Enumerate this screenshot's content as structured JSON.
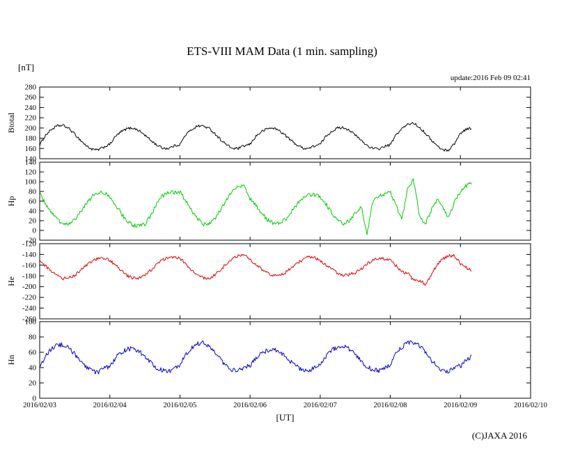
{
  "page": {
    "title": "ETS-VIII MAM Data (1 min. sampling)",
    "unit_label": "[nT]",
    "update_label": "update:2016 Feb 09 02:41",
    "xaxis_title": "[UT]",
    "copyright": "(C)JAXA 2016"
  },
  "chart_data": {
    "type": "line",
    "title": "ETS-VIII MAM Data (1 min. sampling)",
    "xlabel": "[UT]",
    "ylabel": "[nT]",
    "x_start": "2016/02/03",
    "x_end": "2016/02/10",
    "x_tick_labels": [
      "2016/02/03",
      "2016/02/04",
      "2016/02/05",
      "2016/02/06",
      "2016/02/07",
      "2016/02/08",
      "2016/02/09",
      "2016/02/10"
    ],
    "sample_interval_hours": 2,
    "grid": false,
    "legend": "none",
    "panels": [
      {
        "name": "Btotal",
        "color": "#000000",
        "ylim": [
          140,
          280
        ],
        "yticks": [
          280,
          260,
          240,
          220,
          200,
          180,
          160,
          140
        ],
        "noise": 2.5,
        "values": [
          167,
          186,
          197,
          204,
          205,
          199,
          188,
          176,
          165,
          158,
          157,
          163,
          168,
          184,
          193,
          199,
          200,
          195,
          186,
          176,
          167,
          161,
          160,
          165,
          168,
          187,
          197,
          204,
          204,
          199,
          189,
          177,
          167,
          160,
          160,
          165,
          168,
          184,
          193,
          199,
          200,
          195,
          186,
          176,
          167,
          161,
          160,
          165,
          168,
          184,
          194,
          200,
          201,
          196,
          186,
          176,
          166,
          160,
          159,
          164,
          167,
          187,
          199,
          207,
          210,
          201,
          190,
          177,
          165,
          157,
          157,
          170,
          190,
          198,
          200
        ]
      },
      {
        "name": "Hp",
        "color": "#00cc00",
        "ylim": [
          -20,
          140
        ],
        "yticks": [
          140,
          120,
          100,
          80,
          60,
          40,
          20,
          0,
          -20
        ],
        "noise": 4,
        "values": [
          76,
          54,
          36,
          22,
          14,
          14,
          23,
          38,
          56,
          70,
          78,
          78,
          68,
          52,
          34,
          18,
          10,
          10,
          12,
          30,
          54,
          70,
          78,
          78,
          79,
          61,
          40,
          23,
          13,
          14,
          25,
          43,
          64,
          81,
          91,
          90,
          65,
          51,
          35,
          22,
          15,
          15,
          23,
          37,
          53,
          66,
          73,
          73,
          69,
          54,
          36,
          22,
          14,
          20,
          35,
          50,
          -8,
          60,
          70,
          75,
          78,
          50,
          22,
          88,
          103,
          30,
          12,
          42,
          62,
          48,
          25,
          58,
          80,
          92,
          97
        ]
      },
      {
        "name": "He",
        "color": "#e00000",
        "ylim": [
          -260,
          -120
        ],
        "yticks": [
          -120,
          -140,
          -160,
          -180,
          -200,
          -220,
          -240,
          -260
        ],
        "noise": 3,
        "values": [
          -152,
          -162,
          -172,
          -180,
          -185,
          -184,
          -179,
          -170,
          -161,
          -152,
          -148,
          -148,
          -151,
          -160,
          -171,
          -180,
          -184,
          -184,
          -179,
          -170,
          -159,
          -150,
          -146,
          -146,
          -148,
          -158,
          -169,
          -179,
          -184,
          -184,
          -178,
          -168,
          -157,
          -147,
          -142,
          -142,
          -150,
          -158,
          -167,
          -174,
          -179,
          -178,
          -174,
          -166,
          -157,
          -150,
          -145,
          -146,
          -152,
          -159,
          -168,
          -175,
          -179,
          -178,
          -174,
          -167,
          -158,
          -151,
          -147,
          -148,
          -150,
          -161,
          -173,
          -175,
          -189,
          -189,
          -195,
          -178,
          -159,
          -148,
          -143,
          -143,
          -158,
          -165,
          -170
        ]
      },
      {
        "name": "Hn",
        "color": "#0000cc",
        "ylim": [
          0,
          100
        ],
        "yticks": [
          100,
          80,
          60,
          40,
          20,
          0
        ],
        "noise": 3,
        "values": [
          38,
          56,
          64,
          69,
          70,
          65,
          58,
          48,
          40,
          35,
          34,
          39,
          41,
          53,
          60,
          64,
          65,
          61,
          55,
          47,
          40,
          36,
          35,
          39,
          43,
          58,
          66,
          71,
          72,
          67,
          60,
          50,
          42,
          37,
          36,
          41,
          42,
          53,
          59,
          63,
          64,
          60,
          54,
          47,
          41,
          37,
          36,
          40,
          43,
          55,
          63,
          67,
          68,
          64,
          57,
          49,
          41,
          37,
          36,
          40,
          43,
          58,
          67,
          72,
          73,
          68,
          60,
          50,
          41,
          36,
          35,
          40,
          42,
          50,
          55
        ]
      }
    ]
  }
}
